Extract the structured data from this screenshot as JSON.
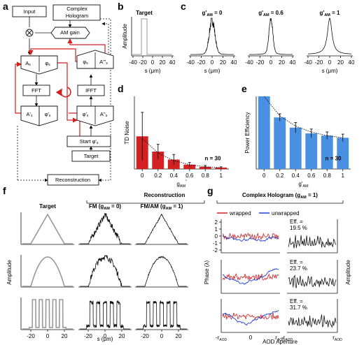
{
  "colors": {
    "red": "#d32020",
    "blue": "#4a90e2",
    "line": "#111111",
    "gray": "#999999",
    "wrapped": "#d32020",
    "unwrapped": "#1f3fd8"
  },
  "panel_labels": [
    "a",
    "b",
    "c",
    "d",
    "e",
    "f",
    "g"
  ],
  "flowchart": {
    "nodes": {
      "input": "Input",
      "complex_hologram": "Complex Hologram",
      "am_gain": "AM gain",
      "as": "A",
      "as_sub": "s",
      "phis": "φ",
      "phis_sub": "s",
      "phis_r": "φ",
      "phis_r_sub": "s",
      "as_r": "A'''",
      "as_r_sub": "s",
      "fft": "FFT",
      "ifft": "IFFT",
      "aprime": "A'",
      "aprime_sub": "s",
      "phiprime": "φ'",
      "phiprime_sub": "s",
      "phiprime_r": "φ'",
      "phiprime_r_sub": "s",
      "as_r2": "A''",
      "as_r2_sub": "s",
      "start": "Start φ'",
      "start_sub": "s",
      "target": "Target",
      "reconstruction": "Reconstruction"
    },
    "icons": [
      "multiply-icon",
      "cycle-arrow-icon"
    ]
  },
  "headers": {
    "reconstruction": "Reconstruction",
    "complex_hologram_title": "Complex Hologram (g",
    "complex_hologram_sub": "AM",
    "complex_hologram_end": " = 1)"
  },
  "panel_b": {
    "title": "Target",
    "ylabel": "Amplitude",
    "xlabel": "s (μm)",
    "ticks": [
      "-40",
      "-20",
      "0",
      "20",
      "40"
    ]
  },
  "panel_c": {
    "titles": [
      {
        "pre": "g'",
        "sub": "AM",
        "post": " = 0"
      },
      {
        "pre": "g'",
        "sub": "AM",
        "post": " = 0.6"
      },
      {
        "pre": "g'",
        "sub": "AM",
        "post": " = 1"
      }
    ],
    "xlabel": "s (μm)",
    "ticks": [
      "-40",
      "-20",
      "0",
      "20",
      "40"
    ]
  },
  "chart_data": [
    {
      "panel": "d",
      "type": "bar",
      "ylabel": "TD Noise",
      "xlabel_pre": "g",
      "xlabel_sub": "AM",
      "xlabel_sup": "'",
      "categories": [
        "0",
        "0.2",
        "0.4",
        "0.6",
        "0.8",
        "1"
      ],
      "values": [
        0.45,
        0.24,
        0.13,
        0.06,
        0.03,
        0.02
      ],
      "errors": [
        0.33,
        0.1,
        0.07,
        0.03,
        0.02,
        0.01
      ],
      "fit": [
        0.42,
        0.22,
        0.115,
        0.06,
        0.032,
        0.018
      ],
      "ylim": [
        0,
        1
      ],
      "annotation": "n = 30",
      "color": "#d32020"
    },
    {
      "panel": "e",
      "type": "bar",
      "ylabel": "Power Efficiency",
      "xlabel_pre": "g'",
      "xlabel_sub": "AM",
      "xlabel_sup": "",
      "categories": [
        "0",
        "0.2",
        "0.4",
        "0.6",
        "0.8",
        "1"
      ],
      "values": [
        1.0,
        0.71,
        0.57,
        0.49,
        0.46,
        0.43
      ],
      "errors": [
        0.0,
        0.05,
        0.07,
        0.06,
        0.05,
        0.05
      ],
      "fit": [
        1.0,
        0.73,
        0.59,
        0.51,
        0.46,
        0.43
      ],
      "ylim": [
        0,
        1
      ],
      "annotation": "n = 30",
      "color": "#4a90e2"
    },
    {
      "panel": "f",
      "type": "line",
      "columns": [
        "Target",
        "FM (g",
        "FM/AM (g"
      ],
      "column_subs": [
        "",
        "AM",
        "AM"
      ],
      "column_posts": [
        "",
        " = 0)",
        " = 1)"
      ],
      "rows": [
        "triangle",
        "parabola",
        "square-comb"
      ],
      "ylabel": "Amplitude",
      "xlabel": "s (μm)",
      "xticks": [
        "-20",
        "0",
        "20"
      ]
    },
    {
      "panel": "g",
      "type": "line",
      "legend": [
        "wrapped",
        "unwrapped"
      ],
      "efficiencies": [
        "Eff. =",
        "19.5 %",
        "Eff. =",
        "23.7 %",
        "Eff. =",
        "31.7 %"
      ],
      "left_yticks": [
        "2",
        "1",
        "0",
        "-1",
        "-2"
      ],
      "left_ylabel": "Phase (λ)",
      "right_ylabel": "Amplitude",
      "xlabel": "AOD Aperture",
      "xtick_left": "-r",
      "xtick_left_sub": "AOD",
      "xtick_mid": "0",
      "xtick_right": "r",
      "xtick_right_sub": "AOD"
    }
  ]
}
